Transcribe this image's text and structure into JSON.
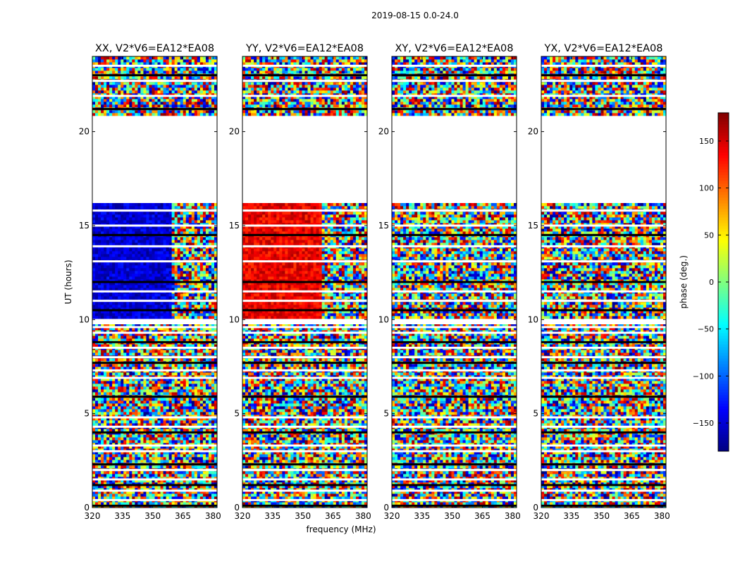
{
  "chart_data": {
    "type": "heatmap",
    "title": "2019-08-15 0.0-24.0",
    "xlabel": "frequency (MHz)",
    "ylabel": "UT (hours)",
    "xlim": [
      320,
      382
    ],
    "ylim": [
      0,
      24
    ],
    "xticks": [
      "320",
      "335",
      "350",
      "365",
      "380"
    ],
    "yticks": [
      "0",
      "5",
      "10",
      "15",
      "20"
    ],
    "colorbar": {
      "label": "phase (deg.)",
      "range": [
        -180,
        180
      ],
      "ticks": [
        "150",
        "100",
        "50",
        "0",
        "−50",
        "−100",
        "−150"
      ],
      "colormap": "jet"
    },
    "panels": [
      {
        "title": "XX, V2*V6=EA12*EA08",
        "coherent_band_phase_deg": -150
      },
      {
        "title": "YY, V2*V6=EA12*EA08",
        "coherent_band_phase_deg": 140
      },
      {
        "title": "XY, V2*V6=EA12*EA08",
        "coherent_band_phase_deg": null
      },
      {
        "title": "YX, V2*V6=EA12*EA08",
        "coherent_band_phase_deg": null
      }
    ],
    "data_gaps_hours": [
      [
        16.2,
        20.8
      ],
      [
        9.75,
        10.1
      ]
    ],
    "flagged_rows_hours": [
      0.1,
      0.4,
      0.9,
      1.2,
      1.5,
      2.0,
      2.3,
      3.0,
      3.3,
      4.0,
      4.3,
      4.8,
      5.9,
      6.9,
      7.3,
      7.7,
      8.0,
      8.5,
      8.8,
      9.3,
      9.6,
      10.5,
      11.0,
      11.5,
      12.0,
      13.1,
      13.9,
      14.5,
      15.0,
      15.8,
      21.2,
      21.9,
      22.7,
      23.0,
      23.5
    ]
  }
}
